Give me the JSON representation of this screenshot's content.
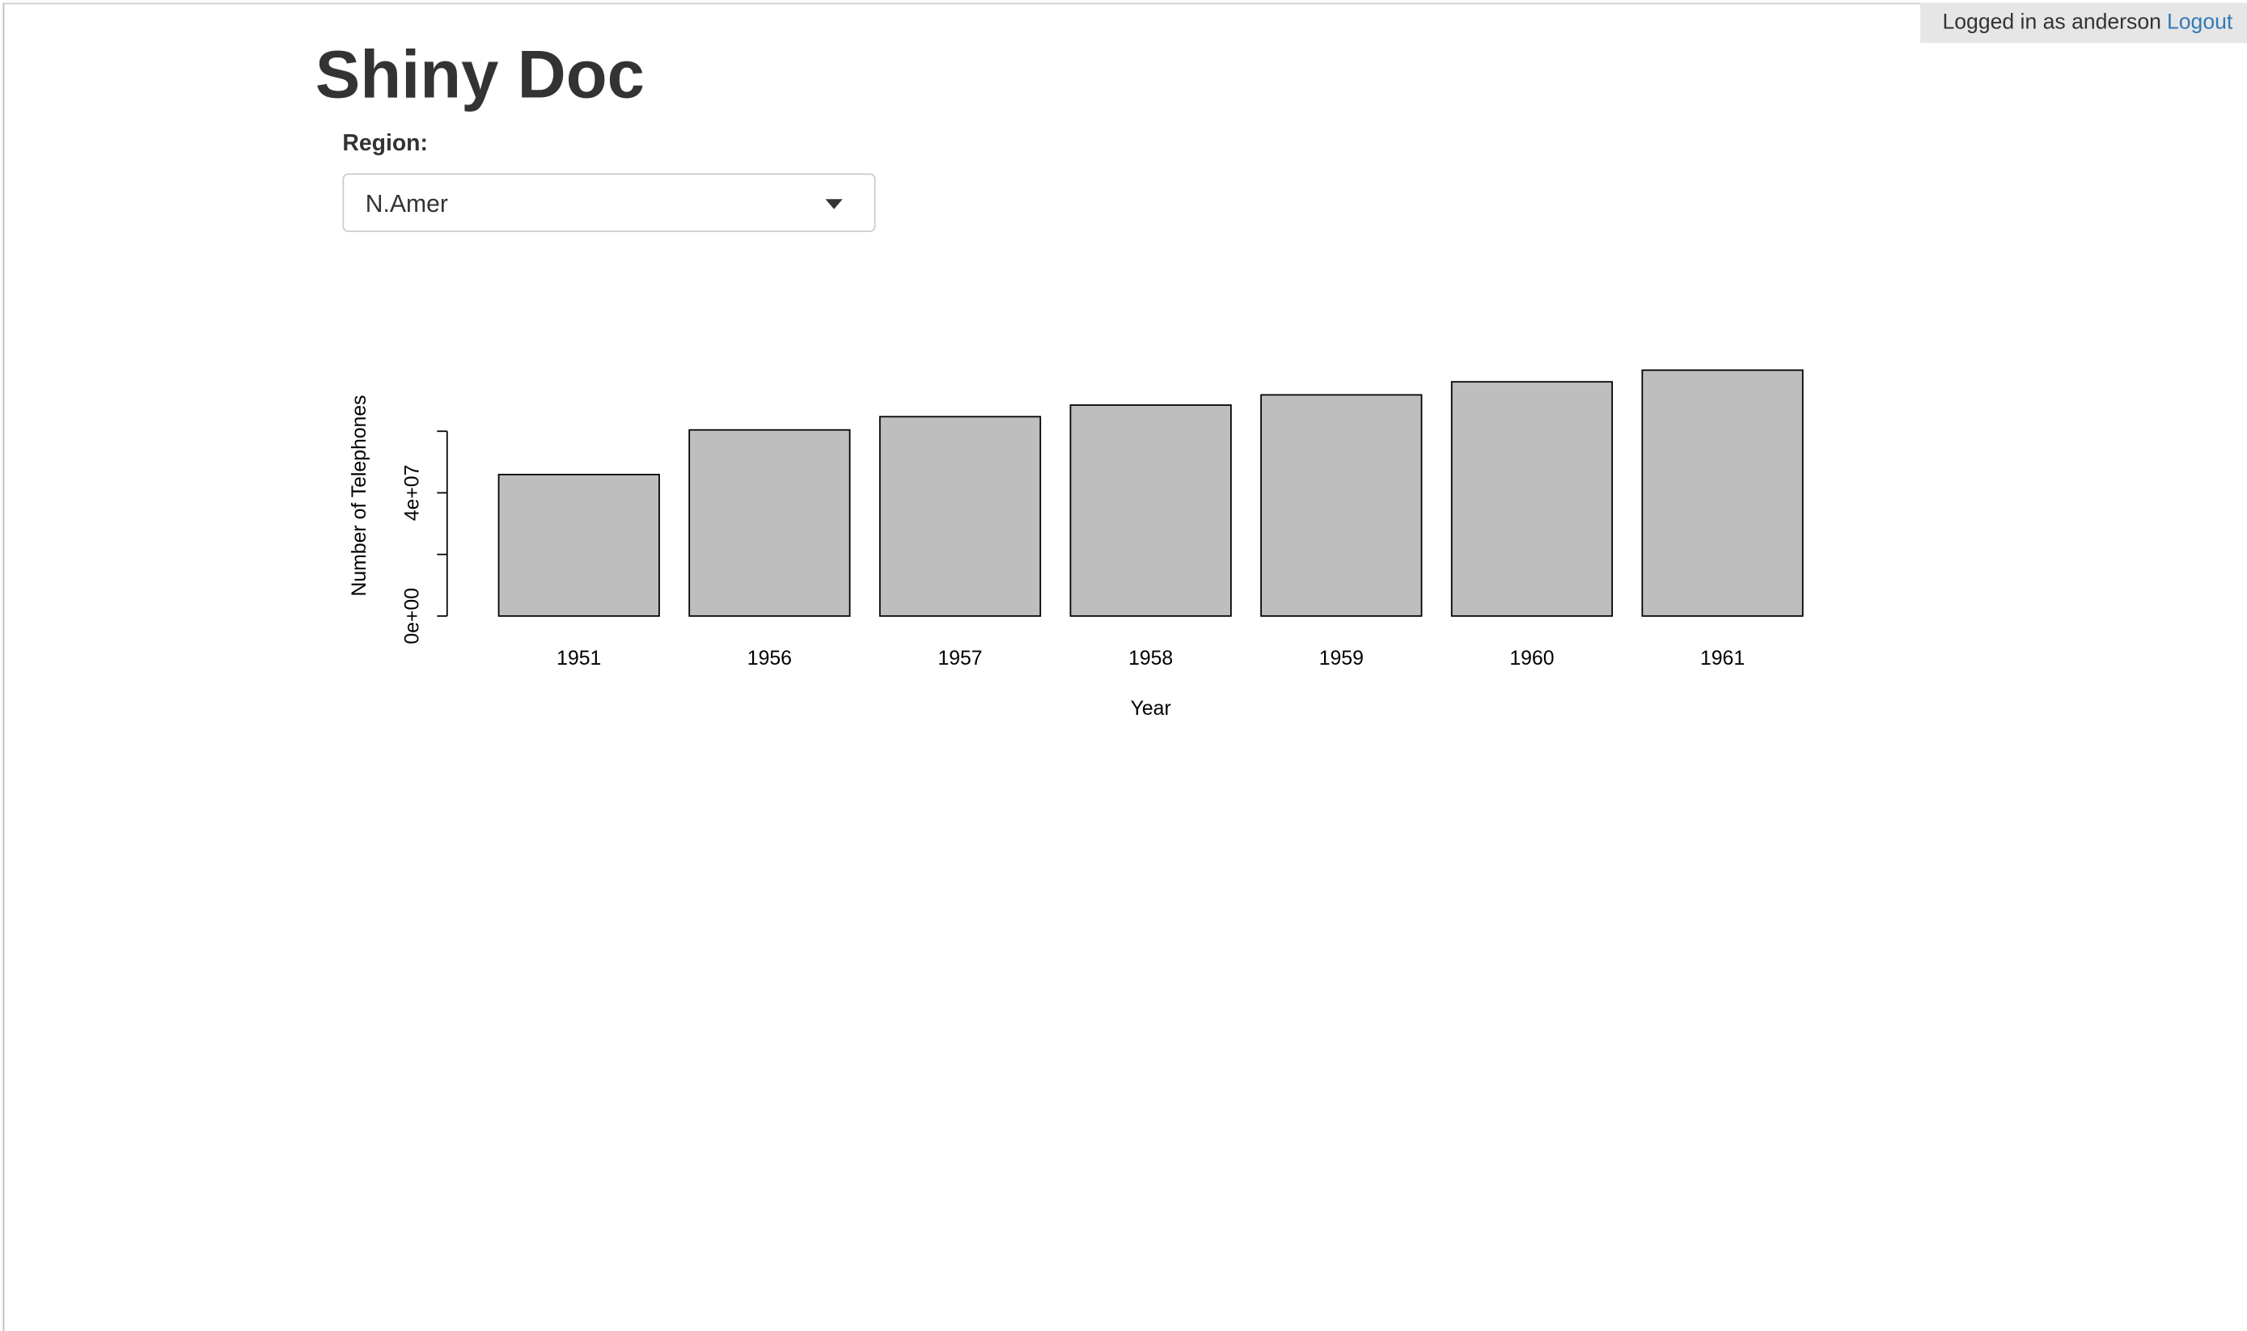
{
  "header": {
    "user": "Logged in as anderson",
    "logout": "Logout"
  },
  "title": "Shiny Doc",
  "input": {
    "label": "Region:",
    "selected": "N.Amer"
  },
  "chart_data": {
    "type": "bar",
    "x_label": "Year",
    "y_label": "Number of Telephones",
    "categories": [
      "1951",
      "1956",
      "1957",
      "1958",
      "1959",
      "1960",
      "1961"
    ],
    "values": [
      45939000,
      60423000,
      64721000,
      68484000,
      71799000,
      76036000,
      79831000
    ],
    "color": "#bebebe",
    "ylim": [
      0,
      83000000
    ],
    "yticks": [
      {
        "value": 0,
        "label": "0e+00"
      },
      {
        "value": 20000000,
        "label": null
      },
      {
        "value": 40000000,
        "label": "4e+07"
      },
      {
        "value": 60000000,
        "label": null
      }
    ]
  }
}
